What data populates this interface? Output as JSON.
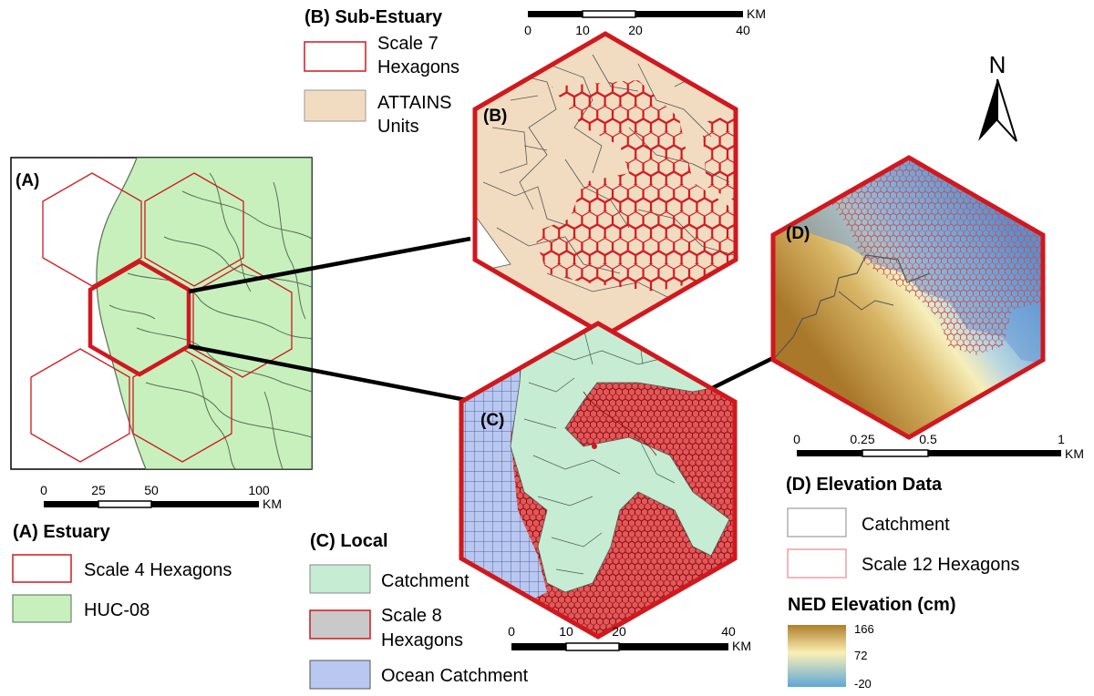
{
  "panel_labels": {
    "a": "(A)",
    "b": "(B)",
    "c": "(C)",
    "d": "(D)"
  },
  "legend_a": {
    "title": "(A) Estuary",
    "items": [
      "Scale 4 Hexagons",
      "HUC-08"
    ]
  },
  "legend_b": {
    "title": "(B) Sub-Estuary",
    "items": [
      [
        "Scale 7",
        "Hexagons"
      ],
      [
        "ATTAINS",
        "Units"
      ]
    ]
  },
  "legend_c": {
    "title": "(C) Local",
    "items": [
      [
        "Catchment"
      ],
      [
        "Scale 8",
        "Hexagons"
      ],
      [
        "Ocean Catchment"
      ]
    ]
  },
  "legend_d": {
    "title": "(D) Elevation Data",
    "items": [
      "Catchment",
      "Scale 12 Hexagons"
    ],
    "ramp_title": "NED Elevation (cm)",
    "ramp_ticks": [
      "166",
      "72",
      "-20"
    ]
  },
  "scalebar_a": {
    "ticks": [
      "0",
      "25",
      "50",
      "100"
    ],
    "unit": "KM"
  },
  "scalebar_b": {
    "ticks": [
      "0",
      "10",
      "20",
      "40"
    ],
    "unit": "KM"
  },
  "scalebar_c": {
    "ticks": [
      "0",
      "10",
      "20",
      "40"
    ],
    "unit": "KM"
  },
  "scalebar_d": {
    "ticks": [
      "0",
      "0.25",
      "0.5",
      "1"
    ],
    "unit": "KM"
  },
  "north_arrow": {
    "label": "N",
    "icon": "north-arrow-icon"
  },
  "colors": {
    "hex_outline": "#d0181e",
    "huc": "#c8f0bd",
    "attains": "#f2dcc1",
    "catchment_fill": "#c6ecd4",
    "hex_fill": "#e2585a",
    "ocean_catchment": "#b8c8f0",
    "ramp_high": "#b07f2a",
    "ramp_mid": "#fbf0b4",
    "ramp_low": "#5fa7d8"
  }
}
